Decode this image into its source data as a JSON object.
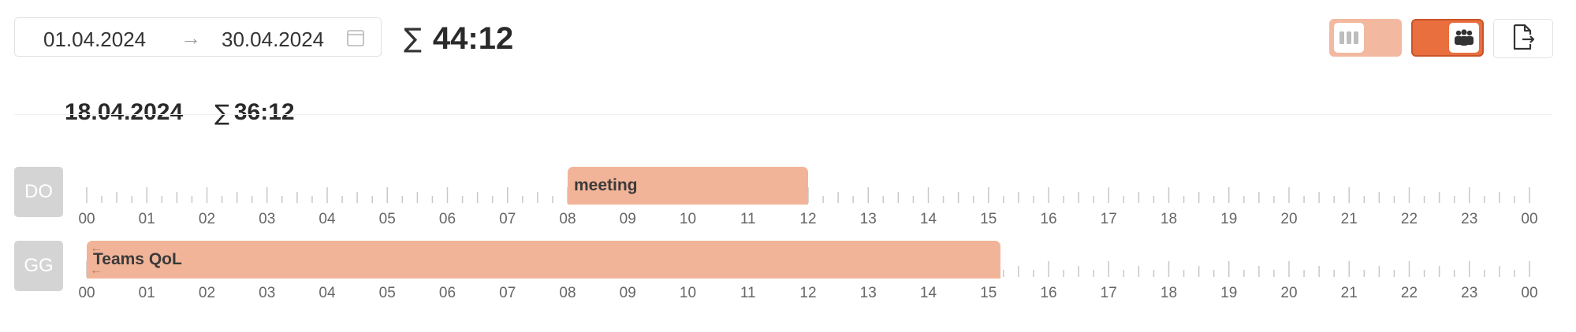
{
  "toolbar": {
    "range_start": "01.04.2024",
    "range_arrow": "→",
    "range_end": "30.04.2024",
    "calendar_icon": "calendar-icon",
    "total_symbol": "∑",
    "total_value": "44:12",
    "toggle_columns_icon": "columns-icon",
    "toggle_team_icon": "team-icon",
    "export_icon": "file-export-icon"
  },
  "day": {
    "date": "18.04.2024",
    "sum_symbol": "∑",
    "sum_value": "36:12"
  },
  "hours": [
    "00",
    "01",
    "02",
    "03",
    "04",
    "05",
    "06",
    "07",
    "08",
    "09",
    "10",
    "11",
    "12",
    "13",
    "14",
    "15",
    "16",
    "17",
    "18",
    "19",
    "20",
    "21",
    "22",
    "23",
    "00"
  ],
  "rows": [
    {
      "initials": "DO",
      "entries": [
        {
          "label": "meeting",
          "start": 8,
          "end": 12,
          "continues_before": false
        }
      ]
    },
    {
      "initials": "GG",
      "entries": [
        {
          "label": "Teams QoL",
          "start": 0,
          "end": 15.2,
          "continues_before": true
        }
      ]
    }
  ],
  "colors": {
    "entry": "#f2b498",
    "accent": "#e96f3f",
    "accent_light": "#f3b9a0",
    "avatar": "#d4d4d4"
  }
}
